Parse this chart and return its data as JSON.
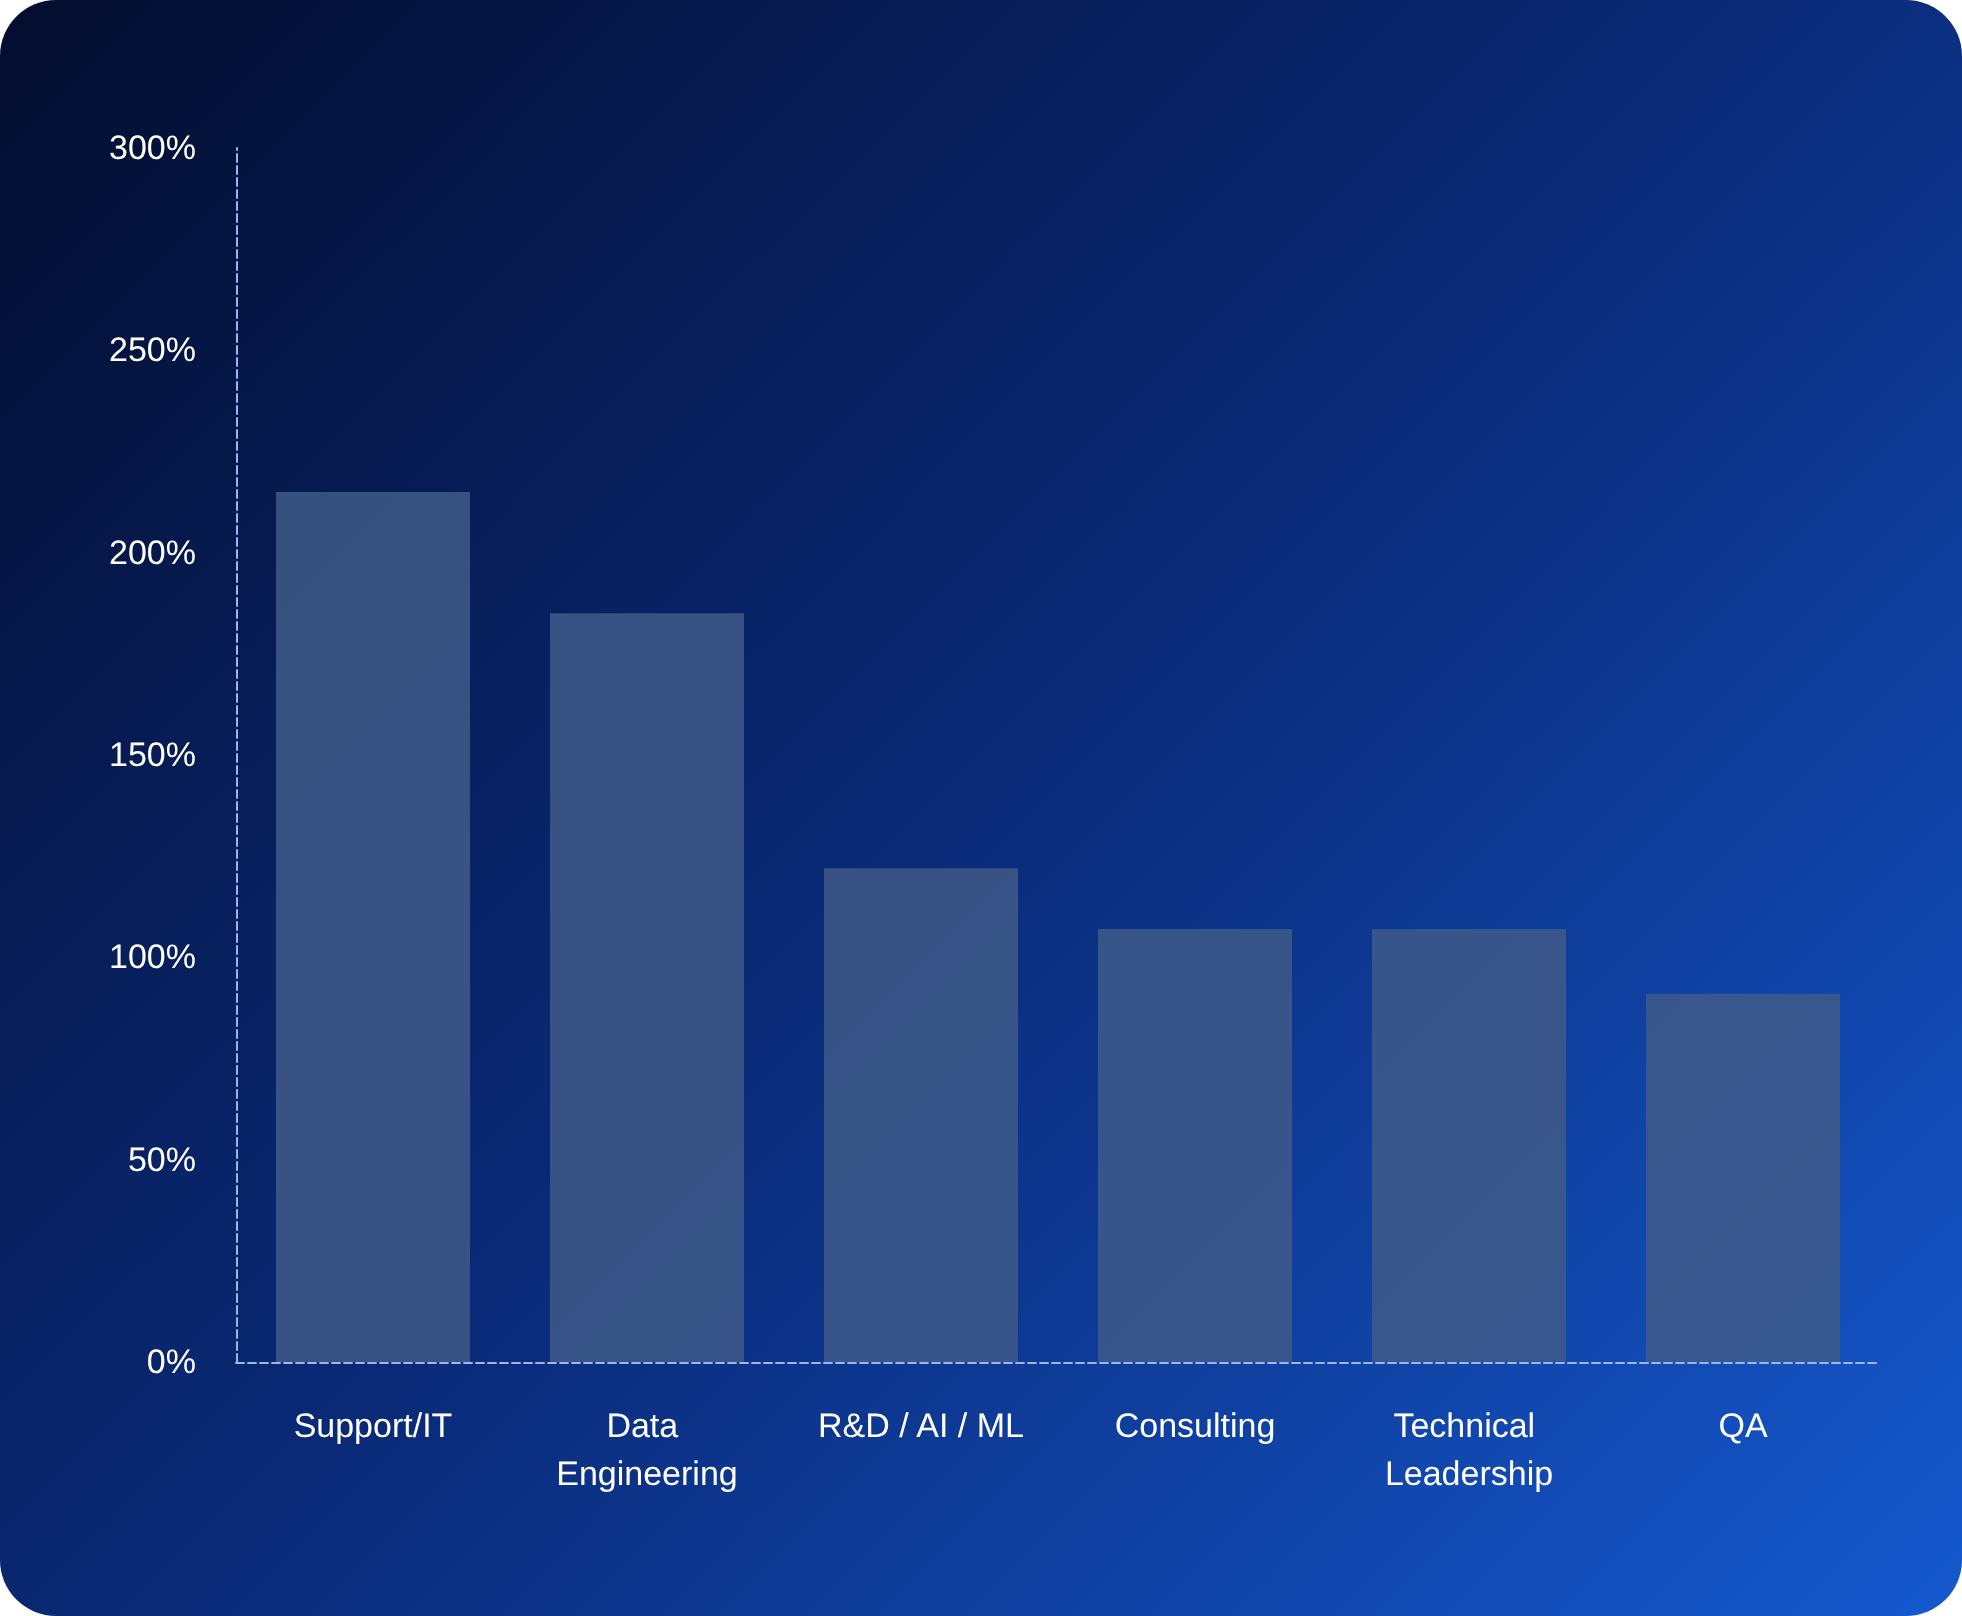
{
  "chart_data": {
    "type": "bar",
    "categories": [
      "Support/IT",
      "Data Engineering",
      "R&D / AI / ML",
      "Consulting",
      "Technical Leadership",
      "QA"
    ],
    "values": [
      215,
      185,
      122,
      107,
      107,
      91
    ],
    "color": "#3f5a88",
    "ylim": [
      0,
      300
    ],
    "yticks": [
      {
        "value": 0,
        "label": "0%"
      },
      {
        "value": 50,
        "label": "50%"
      },
      {
        "value": 100,
        "label": "100%"
      },
      {
        "value": 150,
        "label": "150%"
      },
      {
        "value": 200,
        "label": "200%"
      },
      {
        "value": 250,
        "label": "250%"
      },
      {
        "value": 300,
        "label": "300%"
      }
    ],
    "grid": false
  }
}
